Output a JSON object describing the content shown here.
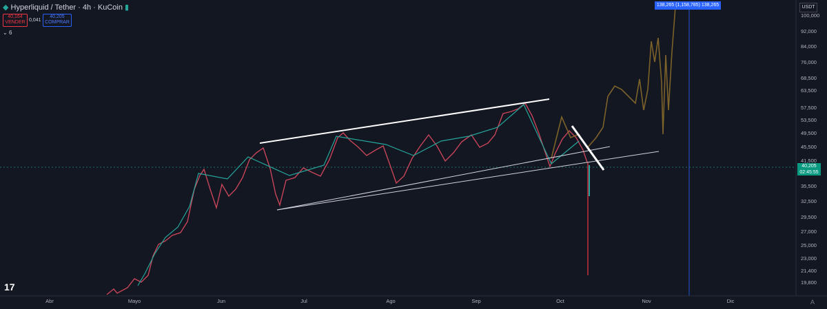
{
  "header": {
    "symbol": "Hyperliquid / Tether · 4h · KuCoin",
    "sell_price": "40,164",
    "sell_label": "VENDER",
    "spread": "0,041",
    "buy_price": "40,205",
    "buy_label": "COMPRAR",
    "indicators": "6"
  },
  "top_badge": "138,265 (1,158,785) 138,265",
  "currency": "USDT",
  "price_axis": [
    "100,000",
    "92,000",
    "84,000",
    "76,000",
    "68,500",
    "63,500",
    "57,500",
    "53,500",
    "49,500",
    "45,500",
    "41,500",
    "35,500",
    "32,500",
    "29,500",
    "27,000",
    "25,000",
    "23,000",
    "21,400",
    "19,800"
  ],
  "current_price": "40,205",
  "countdown": "02:45:55",
  "time_axis": [
    "Abr",
    "Mayo",
    "Jun",
    "Jul",
    "Ago",
    "Sep",
    "Oct",
    "Nov",
    "Dic"
  ]
}
